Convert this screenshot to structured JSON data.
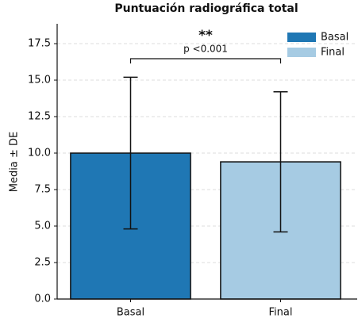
{
  "chart_data": {
    "type": "bar",
    "title": "Puntuación radiográfica total",
    "ylabel": "Media ± DE",
    "categories": [
      "Basal",
      "Final"
    ],
    "series": [
      {
        "name": "Basal",
        "color": "#1f77b4",
        "values": [
          10.0,
          null
        ],
        "errors": [
          5.2,
          null
        ]
      },
      {
        "name": "Final",
        "color": "#a6cbe3",
        "values": [
          null,
          9.4
        ],
        "errors": [
          null,
          4.8
        ]
      }
    ],
    "ylim": [
      0,
      18.86
    ],
    "yticks": [
      {
        "value": 0,
        "label": "0.0"
      },
      {
        "value": 2.5,
        "label": "2.5"
      },
      {
        "value": 5,
        "label": "5.0"
      },
      {
        "value": 7.5,
        "label": "7.5"
      },
      {
        "value": 10,
        "label": "10.0"
      },
      {
        "value": 12.5,
        "label": "12.5"
      },
      {
        "value": 15,
        "label": "15.0"
      },
      {
        "value": 17.5,
        "label": "17.5"
      }
    ],
    "grid": true,
    "legend": "upper right",
    "annotations": [
      {
        "text": "**",
        "y": 16.47
      },
      {
        "text": "p <0.001",
        "y": 16.47
      }
    ]
  }
}
